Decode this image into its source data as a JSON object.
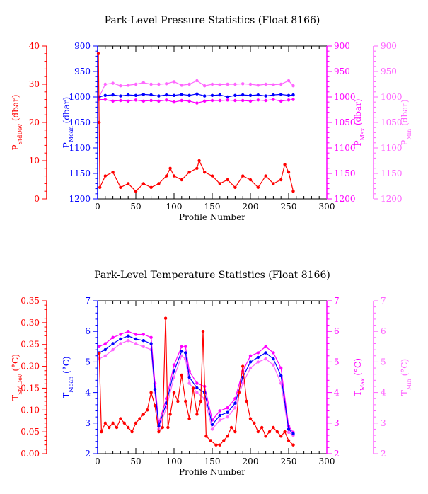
{
  "chart_data": [
    {
      "type": "line",
      "title": "Park-Level Pressure Statistics (Float 8166)",
      "xlabel": "Profile Number",
      "xlim": [
        0,
        300
      ],
      "xticks": [
        0,
        50,
        100,
        150,
        200,
        250,
        300
      ],
      "grid": false,
      "axes": [
        {
          "side": "left-outer",
          "label": "P",
          "sub": "StdDev",
          "unit": " (dbar)",
          "color": "#ff0000",
          "lim": [
            0,
            40
          ],
          "ticks": [
            "0",
            "10",
            "20",
            "30",
            "40"
          ],
          "inverted": false
        },
        {
          "side": "left-inner",
          "label": "P",
          "sub": "Mean",
          "unit": " (dbar)",
          "color": "#0000ff",
          "lim": [
            900,
            1200
          ],
          "ticks": [
            "900",
            "950",
            "1000",
            "1050",
            "1100",
            "1150",
            "1200"
          ],
          "inverted": true
        },
        {
          "side": "right-inner",
          "label": "P",
          "sub": "Max",
          "unit": " (dbar)",
          "color": "#ff00ff",
          "lim": [
            900,
            1200
          ],
          "ticks": [
            "900",
            "950",
            "1000",
            "1050",
            "1100",
            "1150",
            "1200"
          ],
          "inverted": true
        },
        {
          "side": "right-outer",
          "label": "P",
          "sub": "Min",
          "unit": " (dbar)",
          "color": "#ff66ff",
          "lim": [
            900,
            1200
          ],
          "ticks": [
            "900",
            "950",
            "1000",
            "1050",
            "1100",
            "1150",
            "1200"
          ],
          "inverted": true
        }
      ],
      "series": [
        {
          "axis": 3,
          "color": "#ff66ff",
          "x": [
            2,
            10,
            20,
            30,
            40,
            50,
            60,
            70,
            80,
            90,
            100,
            110,
            120,
            130,
            140,
            150,
            160,
            170,
            180,
            190,
            200,
            210,
            220,
            230,
            240,
            250,
            256
          ],
          "y": [
            1000,
            975,
            973,
            978,
            977,
            975,
            972,
            975,
            975,
            974,
            970,
            977,
            975,
            968,
            978,
            975,
            976,
            975,
            975,
            974,
            975,
            977,
            975,
            976,
            975,
            968,
            978
          ]
        },
        {
          "axis": 2,
          "color": "#ff00ff",
          "x": [
            2,
            10,
            20,
            30,
            40,
            50,
            60,
            70,
            80,
            90,
            100,
            110,
            120,
            130,
            140,
            150,
            160,
            170,
            180,
            190,
            200,
            210,
            220,
            230,
            240,
            250,
            256
          ],
          "y": [
            1005,
            1005,
            1008,
            1007,
            1008,
            1006,
            1008,
            1007,
            1008,
            1006,
            1010,
            1007,
            1008,
            1012,
            1008,
            1007,
            1007,
            1006,
            1007,
            1007,
            1008,
            1006,
            1007,
            1005,
            1008,
            1006,
            1005
          ]
        },
        {
          "axis": 1,
          "color": "#0000ff",
          "x": [
            2,
            10,
            20,
            30,
            40,
            50,
            60,
            70,
            80,
            90,
            100,
            110,
            120,
            130,
            140,
            150,
            160,
            170,
            180,
            190,
            200,
            210,
            220,
            230,
            240,
            250,
            256
          ],
          "y": [
            1000,
            997,
            996,
            998,
            996,
            997,
            995,
            996,
            998,
            996,
            997,
            995,
            997,
            994,
            998,
            997,
            996,
            1000,
            997,
            996,
            997,
            996,
            998,
            996,
            995,
            997,
            996
          ]
        },
        {
          "axis": 0,
          "color": "#ff0000",
          "x": [
            1,
            2,
            3,
            10,
            20,
            30,
            40,
            50,
            60,
            70,
            80,
            90,
            95,
            100,
            110,
            120,
            130,
            133,
            140,
            150,
            160,
            170,
            180,
            190,
            200,
            210,
            220,
            230,
            240,
            245,
            250,
            256
          ],
          "y": [
            38,
            20,
            3,
            6,
            7,
            3,
            4,
            2,
            4,
            3,
            4,
            6,
            8,
            6,
            5,
            7,
            8,
            10,
            7,
            6,
            4,
            5,
            3,
            6,
            5,
            3,
            6,
            4,
            5,
            9,
            7,
            2
          ]
        }
      ]
    },
    {
      "type": "line",
      "title": "Park-Level Temperature Statistics (Float 8166)",
      "xlabel": "Profile Number",
      "xlim": [
        0,
        300
      ],
      "xticks": [
        0,
        50,
        100,
        150,
        200,
        250,
        300
      ],
      "grid": false,
      "axes": [
        {
          "side": "left-outer",
          "label": "T",
          "sub": "StdDev",
          "unit": " (°C)",
          "color": "#ff0000",
          "lim": [
            0,
            0.35
          ],
          "ticks": [
            "0.00",
            "0.05",
            "0.10",
            "0.15",
            "0.20",
            "0.25",
            "0.30",
            "0.35"
          ],
          "inverted": false
        },
        {
          "side": "left-inner",
          "label": "T",
          "sub": "Mean",
          "unit": " (°C)",
          "color": "#0000ff",
          "lim": [
            2,
            7
          ],
          "ticks": [
            "2",
            "3",
            "4",
            "5",
            "6",
            "7"
          ],
          "inverted": false
        },
        {
          "side": "right-inner",
          "label": "T",
          "sub": "Max",
          "unit": " (°C)",
          "color": "#ff00ff",
          "lim": [
            2,
            7
          ],
          "ticks": [
            "2",
            "3",
            "4",
            "5",
            "6",
            "7"
          ],
          "inverted": false
        },
        {
          "side": "right-outer",
          "label": "T",
          "sub": "Min",
          "unit": " (°C)",
          "color": "#ff66ff",
          "lim": [
            2,
            7
          ],
          "ticks": [
            "2",
            "3",
            "4",
            "5",
            "6",
            "7"
          ],
          "inverted": false
        }
      ],
      "series": [
        {
          "axis": 3,
          "color": "#ff66ff",
          "x": [
            2,
            10,
            20,
            30,
            40,
            50,
            60,
            70,
            75,
            80,
            90,
            100,
            110,
            115,
            120,
            130,
            140,
            150,
            160,
            170,
            180,
            190,
            200,
            210,
            220,
            230,
            240,
            250,
            256
          ],
          "y": [
            5.1,
            5.2,
            5.4,
            5.6,
            5.7,
            5.6,
            5.5,
            5.4,
            4.0,
            2.8,
            3.5,
            4.5,
            5.2,
            5.1,
            4.3,
            4.0,
            3.8,
            2.8,
            3.1,
            3.2,
            3.5,
            4.3,
            4.8,
            5.0,
            5.1,
            4.9,
            4.3,
            2.7,
            2.6
          ]
        },
        {
          "axis": 2,
          "color": "#ff00ff",
          "x": [
            2,
            10,
            20,
            30,
            40,
            50,
            60,
            70,
            75,
            80,
            90,
            100,
            110,
            115,
            120,
            130,
            140,
            150,
            160,
            170,
            180,
            190,
            200,
            210,
            220,
            230,
            240,
            250,
            256
          ],
          "y": [
            5.5,
            5.6,
            5.8,
            5.9,
            6.0,
            5.9,
            5.9,
            5.8,
            4.3,
            3.0,
            3.8,
            4.9,
            5.5,
            5.5,
            4.7,
            4.3,
            4.2,
            3.1,
            3.4,
            3.5,
            3.8,
            4.7,
            5.2,
            5.3,
            5.5,
            5.3,
            4.8,
            2.9,
            2.7
          ]
        },
        {
          "axis": 1,
          "color": "#0000ff",
          "x": [
            2,
            10,
            20,
            30,
            40,
            50,
            60,
            70,
            75,
            80,
            90,
            100,
            110,
            115,
            120,
            130,
            140,
            150,
            160,
            170,
            180,
            190,
            200,
            210,
            220,
            230,
            240,
            250,
            256
          ],
          "y": [
            5.3,
            5.4,
            5.6,
            5.75,
            5.85,
            5.75,
            5.7,
            5.6,
            4.1,
            2.9,
            3.65,
            4.7,
            5.35,
            5.3,
            4.5,
            4.15,
            4.0,
            2.95,
            3.25,
            3.35,
            3.65,
            4.5,
            5.0,
            5.15,
            5.3,
            5.1,
            4.55,
            2.8,
            2.65
          ]
        },
        {
          "axis": 0,
          "color": "#ff0000",
          "x": [
            2,
            5,
            10,
            15,
            20,
            25,
            30,
            35,
            40,
            45,
            50,
            55,
            60,
            65,
            70,
            75,
            80,
            85,
            89,
            92,
            95,
            100,
            105,
            110,
            115,
            120,
            125,
            130,
            135,
            138,
            142,
            148,
            155,
            160,
            165,
            170,
            175,
            180,
            185,
            190,
            195,
            200,
            205,
            210,
            215,
            220,
            225,
            230,
            235,
            240,
            245,
            250,
            256
          ],
          "y": [
            0.23,
            0.05,
            0.07,
            0.06,
            0.07,
            0.06,
            0.08,
            0.07,
            0.06,
            0.05,
            0.07,
            0.08,
            0.09,
            0.1,
            0.14,
            0.11,
            0.05,
            0.06,
            0.31,
            0.06,
            0.09,
            0.14,
            0.12,
            0.18,
            0.12,
            0.08,
            0.15,
            0.09,
            0.12,
            0.28,
            0.04,
            0.03,
            0.02,
            0.02,
            0.03,
            0.04,
            0.06,
            0.05,
            0.14,
            0.2,
            0.12,
            0.08,
            0.07,
            0.05,
            0.06,
            0.04,
            0.05,
            0.06,
            0.05,
            0.04,
            0.05,
            0.03,
            0.02
          ]
        }
      ]
    }
  ]
}
